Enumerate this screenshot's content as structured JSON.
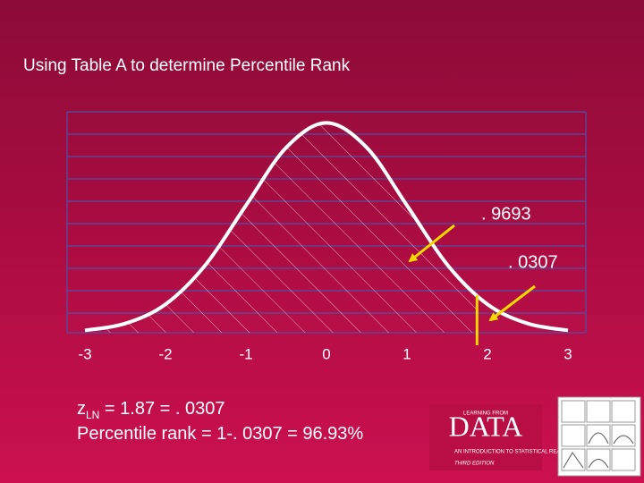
{
  "slide_title": "Using Table A to determine Percentile Rank",
  "chart_data": {
    "type": "density",
    "x": [
      -3,
      -2.5,
      -2,
      -1.5,
      -1,
      -0.5,
      0,
      0.5,
      1,
      1.5,
      2,
      2.5,
      3
    ],
    "values": [
      0.0044,
      0.0175,
      0.054,
      0.1295,
      0.242,
      0.3521,
      0.3989,
      0.3521,
      0.242,
      0.1295,
      0.054,
      0.0175,
      0.0044
    ],
    "color": "#ffffff",
    "xlim": [
      -3.2,
      3.2
    ],
    "ylim": [
      0,
      0.42
    ],
    "xticks": [
      -3,
      -2,
      -1,
      0,
      1,
      2,
      3
    ],
    "marker_x": 1.87,
    "marker_color": "#f5d800"
  },
  "annotations": [
    ". 9693",
    ". 0307"
  ],
  "body": {
    "z": "z",
    "z_sub": "LN",
    "z_rest": " = 1.87 = . 0307",
    "line2": "Percentile rank = 1-. 0307 = 96.93%"
  },
  "logo": {
    "top": "LEARNING FROM",
    "main": "DATA",
    "sub": "AN INTRODUCTION TO STATISTICAL REASONING",
    "edition": "THIRD EDITION"
  }
}
